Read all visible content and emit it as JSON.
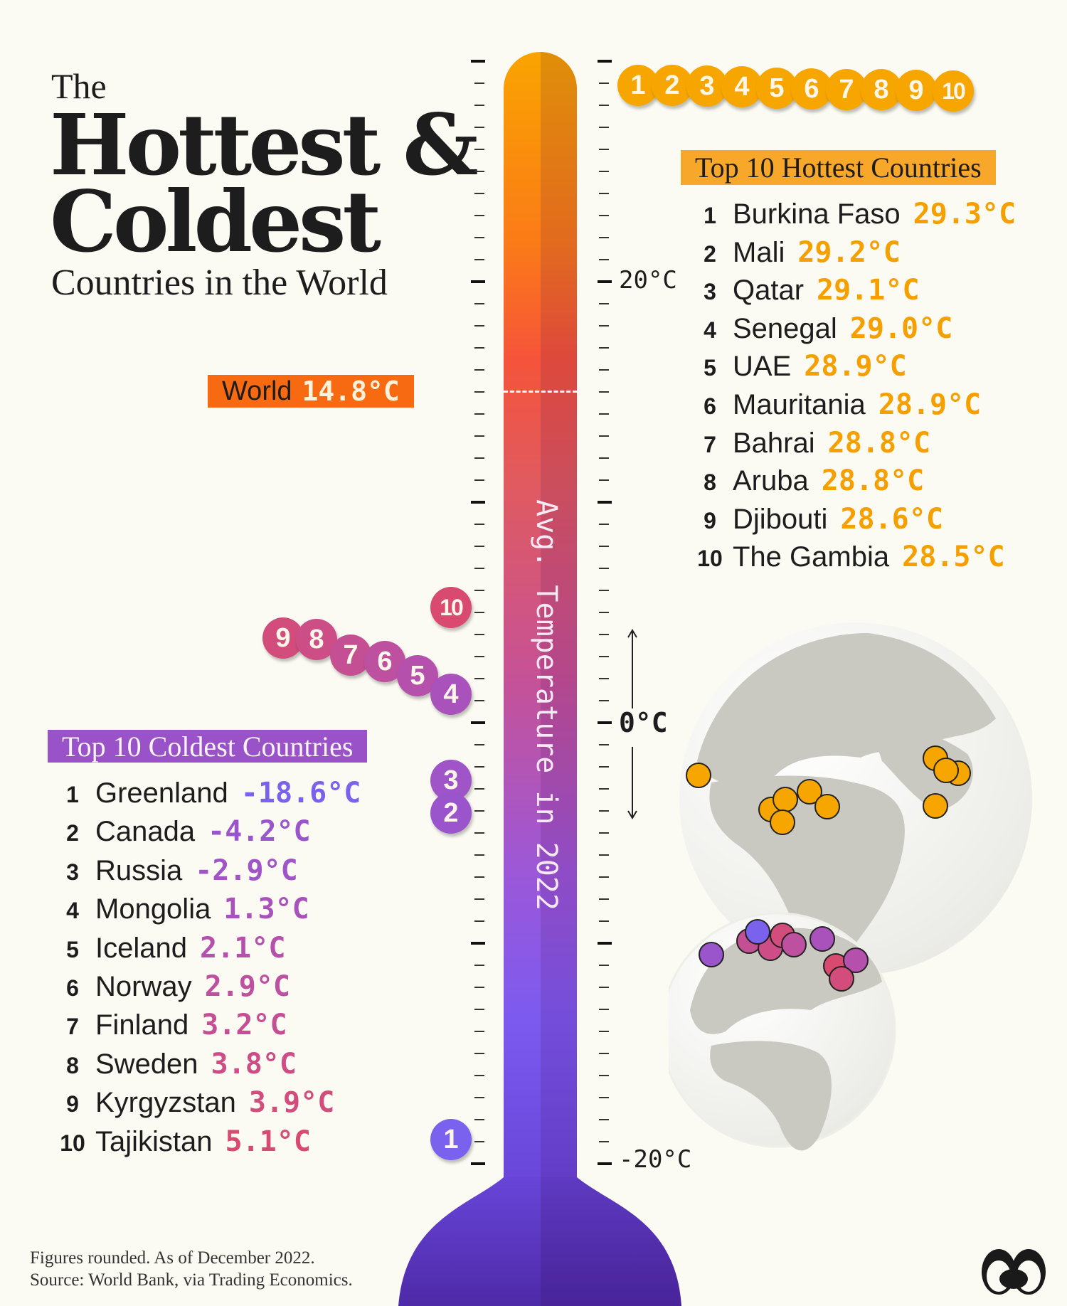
{
  "title": {
    "the": "The",
    "main_line1": "Hottest &",
    "main_line2": "Coldest",
    "subtitle": "Countries in the World"
  },
  "scale": {
    "labels": {
      "plus20": "20°C",
      "zero": "0°C",
      "minus20": "-20°C"
    },
    "axis_title": "Avg. Temperature in 2022"
  },
  "world": {
    "label": "World",
    "value": "14.8°C",
    "temp": 14.8
  },
  "hottest": {
    "header": "Top 10 Hottest Countries",
    "color": "#f5a000",
    "items": [
      {
        "rank": "1",
        "name": "Burkina Faso",
        "value": "29.3°C"
      },
      {
        "rank": "2",
        "name": "Mali",
        "value": "29.2°C"
      },
      {
        "rank": "3",
        "name": "Qatar",
        "value": "29.1°C"
      },
      {
        "rank": "4",
        "name": "Senegal",
        "value": "29.0°C"
      },
      {
        "rank": "5",
        "name": "UAE",
        "value": "28.9°C"
      },
      {
        "rank": "6",
        "name": "Mauritania",
        "value": "28.9°C"
      },
      {
        "rank": "7",
        "name": "Bahrai",
        "value": "28.8°C"
      },
      {
        "rank": "8",
        "name": "Aruba",
        "value": "28.8°C"
      },
      {
        "rank": "9",
        "name": "Djibouti",
        "value": "28.6°C"
      },
      {
        "rank": "10",
        "name": "The Gambia",
        "value": "28.5°C"
      }
    ]
  },
  "coldest": {
    "header": "Top 10 Coldest Countries",
    "items": [
      {
        "rank": "1",
        "name": "Greenland",
        "value": "-18.6°C",
        "color": "#7a62ee"
      },
      {
        "rank": "2",
        "name": "Canada",
        "value": "-4.2°C",
        "color": "#9a55cc"
      },
      {
        "rank": "3",
        "name": "Russia",
        "value": "-2.9°C",
        "color": "#9f55c8"
      },
      {
        "rank": "4",
        "name": "Mongolia",
        "value": "1.3°C",
        "color": "#aa52bb"
      },
      {
        "rank": "5",
        "name": "Iceland",
        "value": "2.1°C",
        "color": "#b550ad"
      },
      {
        "rank": "6",
        "name": "Norway",
        "value": "2.9°C",
        "color": "#bd509f"
      },
      {
        "rank": "7",
        "name": "Finland",
        "value": "3.2°C",
        "color": "#c54f93"
      },
      {
        "rank": "8",
        "name": "Sweden",
        "value": "3.8°C",
        "color": "#cd4e86"
      },
      {
        "rank": "9",
        "name": "Kyrgyzstan",
        "value": "3.9°C",
        "color": "#d24c7c"
      },
      {
        "rank": "10",
        "name": "Tajikistan",
        "value": "5.1°C",
        "color": "#d84a6f"
      }
    ]
  },
  "footer": {
    "line1": "Figures rounded. As of December 2022.",
    "line2": "Source: World Bank, via Trading Economics."
  }
}
